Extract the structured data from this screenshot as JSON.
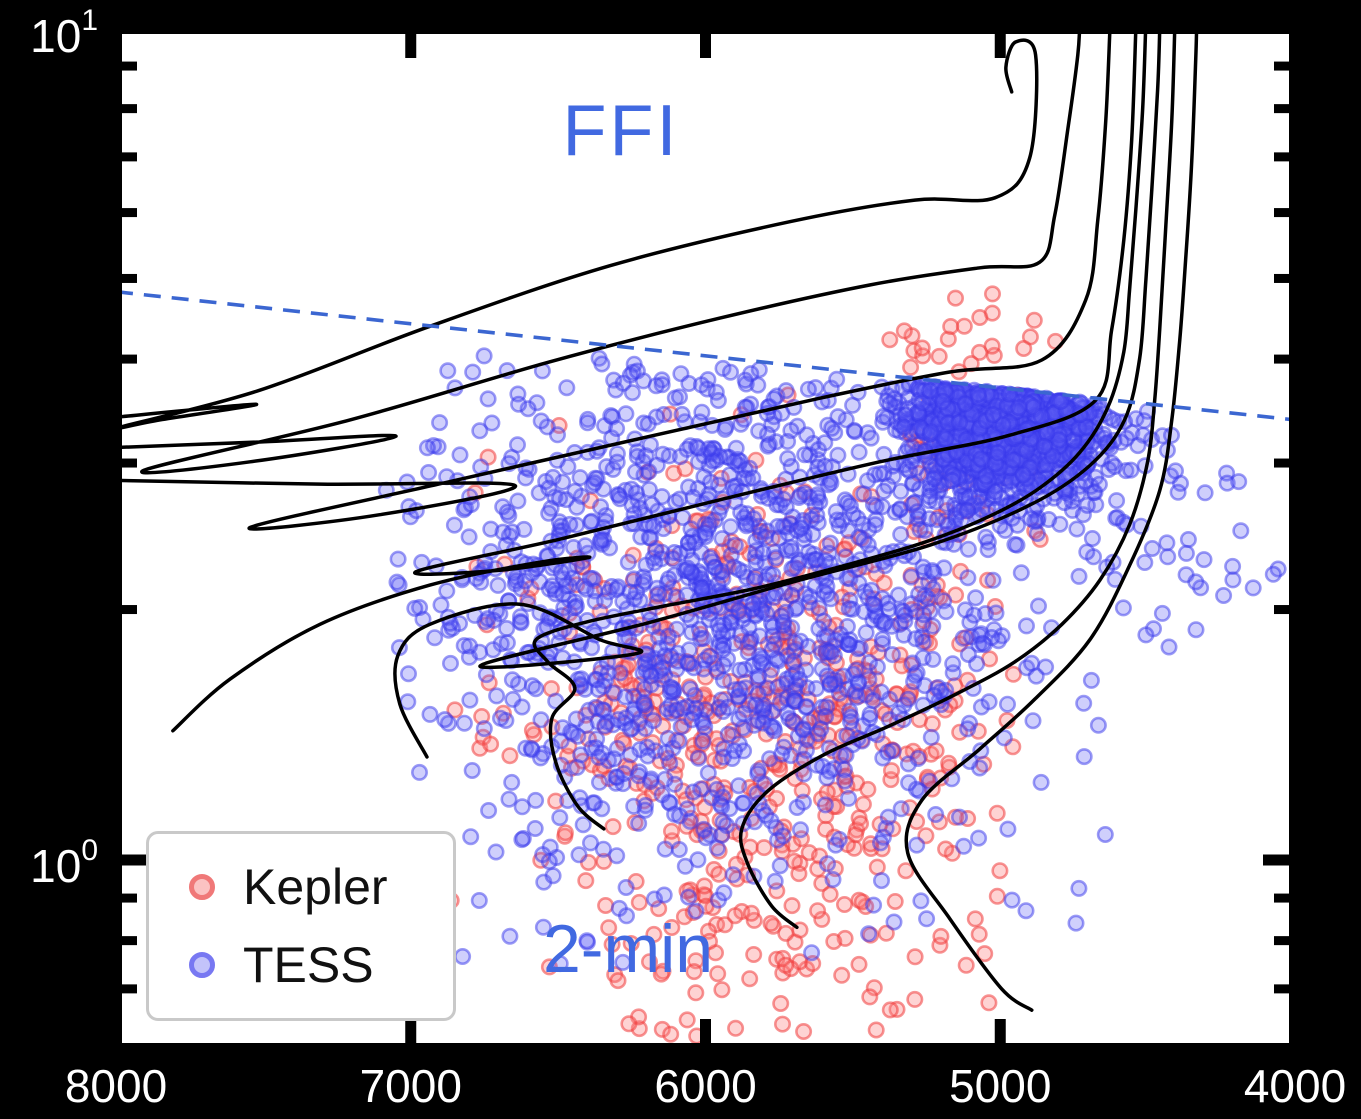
{
  "chart_data": {
    "type": "scatter",
    "title": "",
    "description": "Radius (log scale, solar units) versus effective temperature (K) diagram with stellar evolutionary tracks; Kepler and TESS oscillating-star samples; dashed line separates FFI region (above) from 2-min region (below)",
    "x_axis": {
      "label": "",
      "min": 4000,
      "max": 8000,
      "reversed": true,
      "ticks": [
        8000,
        7000,
        6000,
        5000,
        4000
      ]
    },
    "y_axis": {
      "label": "",
      "scale": "log",
      "min": 0.59,
      "max": 10,
      "major_ticks": [
        {
          "value": 10,
          "base": "10",
          "exp": "1"
        },
        {
          "value": 1,
          "base": "10",
          "exp": "0"
        }
      ],
      "minor_ticks": [
        9,
        8,
        7,
        6,
        5,
        4,
        3,
        2,
        0.9,
        0.8,
        0.7
      ]
    },
    "grid": false,
    "legend": {
      "position": "lower-left",
      "items": [
        "Kepler",
        "TESS"
      ]
    },
    "annotations": [
      {
        "id": "ffi",
        "text": "FFI",
        "color": "#4169e1",
        "x": 6290,
        "y": 7.5
      },
      {
        "id": "2min",
        "text": "2-min",
        "color": "#4169e1",
        "x": 6270,
        "y": 0.78
      }
    ],
    "boundary_line": {
      "style": "dashed",
      "color": "#3b66d1",
      "points": [
        [
          8000,
          4.82
        ],
        [
          4000,
          3.38
        ]
      ]
    },
    "tracks": {
      "color": "#000000",
      "width": 3.5,
      "paths": [
        [
          [
            4893,
            0.66
          ],
          [
            4995,
            0.7
          ],
          [
            5171,
            0.85
          ],
          [
            5314,
            1.02
          ],
          [
            5266,
            1.18
          ],
          [
            5069,
            1.36
          ],
          [
            4883,
            1.56
          ],
          [
            4696,
            1.84
          ],
          [
            4561,
            2.26
          ],
          [
            4459,
            2.78
          ],
          [
            4418,
            3.38
          ],
          [
            4391,
            4.22
          ],
          [
            4371,
            5.26
          ],
          [
            4350,
            6.94
          ],
          [
            4337,
            9.15
          ],
          [
            4334,
            9.95
          ]
        ],
        [
          [
            5690,
            0.83
          ],
          [
            5775,
            0.88
          ],
          [
            5857,
            0.99
          ],
          [
            5877,
            1.09
          ],
          [
            5789,
            1.21
          ],
          [
            5595,
            1.34
          ],
          [
            5375,
            1.45
          ],
          [
            5154,
            1.58
          ],
          [
            4951,
            1.73
          ],
          [
            4791,
            1.92
          ],
          [
            4662,
            2.17
          ],
          [
            4561,
            2.53
          ],
          [
            4500,
            3.01
          ],
          [
            4476,
            3.57
          ],
          [
            4459,
            4.34
          ],
          [
            4439,
            5.72
          ],
          [
            4418,
            7.75
          ],
          [
            4408,
            9.95
          ]
        ],
        [
          [
            6345,
            1.09
          ],
          [
            6433,
            1.16
          ],
          [
            6508,
            1.31
          ],
          [
            6521,
            1.48
          ],
          [
            6443,
            1.61
          ],
          [
            6535,
            1.73
          ],
          [
            6575,
            1.84
          ],
          [
            6409,
            1.93
          ],
          [
            6138,
            2.02
          ],
          [
            5832,
            2.12
          ],
          [
            5527,
            2.26
          ],
          [
            5256,
            2.41
          ],
          [
            5035,
            2.59
          ],
          [
            4866,
            2.8
          ],
          [
            4730,
            3.09
          ],
          [
            4635,
            3.5
          ],
          [
            4581,
            4.08
          ],
          [
            4561,
            4.85
          ],
          [
            4540,
            6.04
          ],
          [
            4517,
            7.97
          ],
          [
            4507,
            9.95
          ]
        ],
        [
          [
            6945,
            1.33
          ],
          [
            7037,
            1.54
          ],
          [
            7044,
            1.76
          ],
          [
            6935,
            1.92
          ],
          [
            6630,
            2.03
          ],
          [
            6358,
            1.84
          ],
          [
            6236,
            1.77
          ],
          [
            6765,
            1.71
          ],
          [
            6189,
            1.93
          ],
          [
            5680,
            2.17
          ],
          [
            5239,
            2.39
          ],
          [
            4900,
            2.67
          ],
          [
            4696,
            2.98
          ],
          [
            4578,
            3.38
          ],
          [
            4527,
            4.01
          ],
          [
            4506,
            4.98
          ],
          [
            4486,
            6.39
          ],
          [
            4466,
            8.42
          ],
          [
            4459,
            9.95
          ]
        ],
        [
          [
            7807,
            1.43
          ],
          [
            7613,
            1.65
          ],
          [
            7308,
            1.92
          ],
          [
            6935,
            2.14
          ],
          [
            6562,
            2.28
          ],
          [
            6396,
            2.31
          ],
          [
            6698,
            2.23
          ],
          [
            6983,
            2.22
          ],
          [
            6494,
            2.43
          ],
          [
            5951,
            2.71
          ],
          [
            5409,
            3.01
          ],
          [
            4968,
            3.24
          ],
          [
            4676,
            3.57
          ],
          [
            4622,
            4.34
          ],
          [
            4581,
            5.56
          ],
          [
            4554,
            7.34
          ],
          [
            4540,
            9.95
          ]
        ],
        [
          [
            8020,
            2.86
          ],
          [
            7308,
            2.83
          ],
          [
            6647,
            2.82
          ],
          [
            7105,
            2.6
          ],
          [
            7545,
            2.51
          ],
          [
            6867,
            2.85
          ],
          [
            6189,
            3.23
          ],
          [
            5612,
            3.59
          ],
          [
            5171,
            3.86
          ],
          [
            4859,
            3.99
          ],
          [
            4710,
            4.71
          ],
          [
            4669,
            5.88
          ],
          [
            4642,
            7.75
          ],
          [
            4628,
            9.95
          ]
        ],
        [
          [
            8020,
            3.13
          ],
          [
            7512,
            3.18
          ],
          [
            7050,
            3.23
          ],
          [
            7545,
            3.01
          ],
          [
            7905,
            2.94
          ],
          [
            7206,
            3.38
          ],
          [
            6528,
            3.97
          ],
          [
            5951,
            4.48
          ],
          [
            5443,
            4.91
          ],
          [
            5069,
            5.15
          ],
          [
            4866,
            5.23
          ],
          [
            4815,
            5.96
          ],
          [
            4771,
            7.54
          ],
          [
            4737,
            9.28
          ],
          [
            4730,
            10.2
          ]
        ],
        [
          [
            8020,
            3.4
          ],
          [
            7525,
            3.53
          ],
          [
            7851,
            3.38
          ],
          [
            7990,
            3.31
          ],
          [
            7512,
            3.67
          ],
          [
            6935,
            4.38
          ],
          [
            6324,
            5.18
          ],
          [
            5714,
            5.85
          ],
          [
            5290,
            6.21
          ],
          [
            5018,
            6.25
          ],
          [
            4900,
            6.98
          ],
          [
            4880,
            9.28
          ],
          [
            4948,
            9.62
          ],
          [
            4981,
            8.97
          ],
          [
            4961,
            8.38
          ]
        ]
      ]
    },
    "series": [
      {
        "name": "Kepler",
        "marker": {
          "fill": "rgba(252,120,120,0.33)",
          "stroke": "rgba(240,60,60,0.55)",
          "legend_fill": "#fbc2c2",
          "legend_stroke": "#f07878"
        },
        "approx_count": 660,
        "clusters": [
          {
            "n": 520,
            "T": [
              5800,
              420
            ],
            "logR": [
              0.17,
              0.14
            ],
            "clipT": [
              4950,
              6900
            ],
            "clipLogR": [
              -0.25,
              0.58
            ],
            "belowLine": true
          },
          {
            "n": 70,
            "T": [
              5100,
              150
            ],
            "logR": [
              0.5,
              0.06
            ],
            "clipT": [
              4700,
              5500
            ],
            "clipLogR": [
              0.3,
              0.66
            ],
            "belowLine": true
          },
          {
            "n": 24,
            "T": [
              5150,
              220
            ],
            "logR": [
              0.615,
              0.04
            ],
            "clipT": [
              4700,
              5650
            ],
            "clipLogR": [
              0.5,
              0.72
            ],
            "aboveLine": true
          },
          {
            "n": 45,
            "T": [
              5800,
              320
            ],
            "logR": [
              -0.12,
              0.08
            ],
            "clipT": [
              5000,
              6600
            ],
            "clipLogR": [
              -0.3,
              0.05
            ],
            "belowLine": true
          }
        ],
        "outliers": [
          [
            5290,
            0.68
          ],
          [
            5850,
            0.72
          ]
        ]
      },
      {
        "name": "TESS",
        "marker": {
          "fill": "rgba(95,95,245,0.30)",
          "stroke": "rgba(55,55,235,0.50)",
          "legend_fill": "#c3c3fa",
          "legend_stroke": "#7878f2"
        },
        "approx_count": 2900,
        "clusters": [
          {
            "n": 1350,
            "T": [
              5950,
              520
            ],
            "logR": [
              0.33,
              0.16
            ],
            "clipT": [
              4600,
              7100
            ],
            "clipLogR": [
              -0.12,
              0.66
            ],
            "belowLine": true
          },
          {
            "n": 1400,
            "T": [
              4990,
              170
            ],
            "logR": [
              0.54,
              0.05
            ],
            "clipT": [
              4450,
              5400
            ],
            "clipLogR": [
              0.1,
              0.68
            ],
            "belowLine": true
          },
          {
            "n": 60,
            "T": [
              4450,
              180
            ],
            "logR": [
              0.42,
              0.09
            ],
            "clipT": [
              4050,
              4750
            ],
            "clipLogR": [
              0.05,
              0.6
            ],
            "belowLine": true
          },
          {
            "n": 50,
            "T": [
              6300,
              350
            ],
            "logR": [
              0.05,
              0.1
            ],
            "clipT": [
              5500,
              7100
            ],
            "clipLogR": [
              -0.2,
              0.3
            ],
            "belowLine": true
          }
        ],
        "outliers": [
          [
            4960,
            0.895
          ]
        ]
      }
    ],
    "style": {
      "background": "#000000",
      "plot_background": "#ffffff",
      "spine_color": "#000000",
      "tick_label_color": "#ffffff",
      "marker_radius": 7.2,
      "marker_stroke_width": 2.6
    }
  }
}
